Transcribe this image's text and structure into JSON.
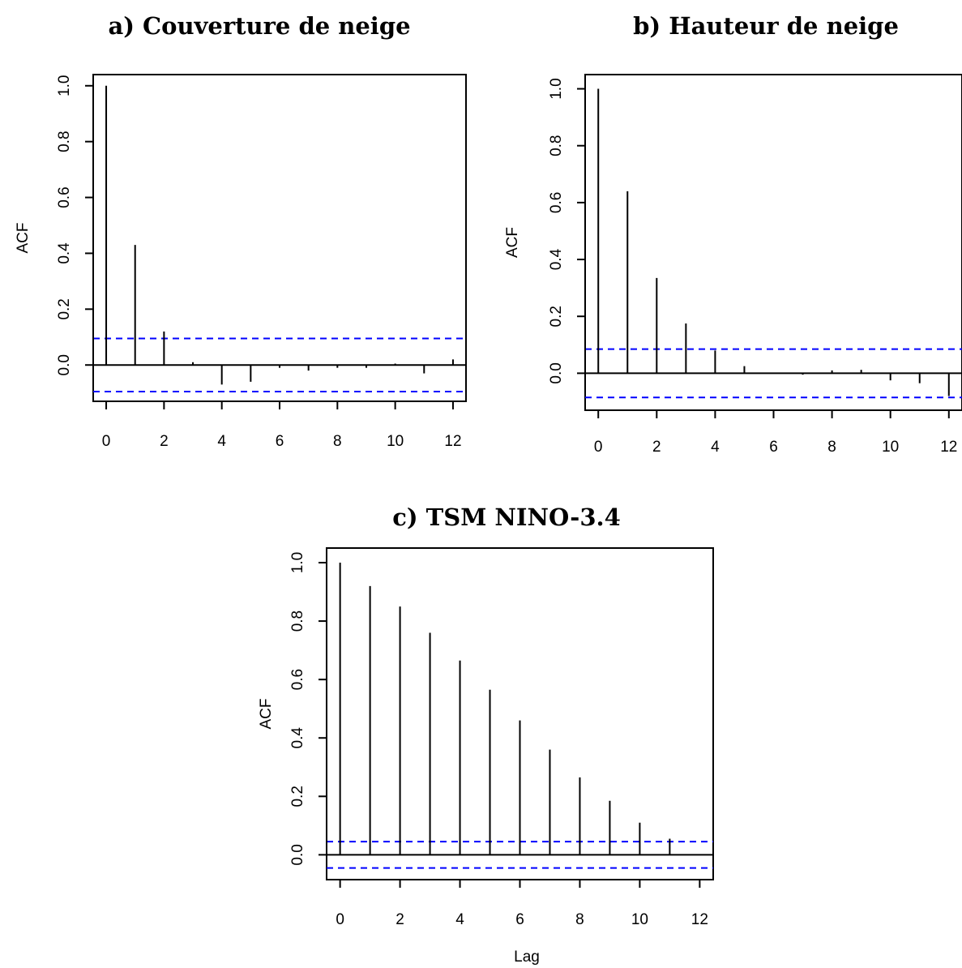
{
  "chart_data": [
    {
      "type": "bar",
      "subtype": "acf",
      "title": "a) Couverture de neige",
      "xlabel": "",
      "ylabel": "ACF",
      "xlim": [
        -0.45,
        12.45
      ],
      "ylim": [
        -0.13,
        1.04
      ],
      "xticks": [
        "0",
        "2",
        "4",
        "6",
        "8",
        "10",
        "12"
      ],
      "yticks": [
        "0.0",
        "0.2",
        "0.4",
        "0.6",
        "0.8",
        "1.0"
      ],
      "lags": [
        0,
        1,
        2,
        3,
        4,
        5,
        6,
        7,
        8,
        9,
        10,
        11,
        12
      ],
      "values": [
        1.0,
        0.43,
        0.12,
        0.01,
        -0.07,
        -0.06,
        -0.01,
        -0.02,
        -0.01,
        -0.01,
        0.005,
        -0.03,
        0.02
      ],
      "confidence_bound": 0.095,
      "colors": {
        "stems": "#000000",
        "bounds": "#0000ff"
      }
    },
    {
      "type": "bar",
      "subtype": "acf",
      "title": "b) Hauteur de neige",
      "xlabel": "",
      "ylabel": "ACF",
      "xlim": [
        -0.45,
        12.45
      ],
      "ylim": [
        -0.13,
        1.05
      ],
      "xticks": [
        "0",
        "2",
        "4",
        "6",
        "8",
        "10",
        "12"
      ],
      "yticks": [
        "0.0",
        "0.2",
        "0.4",
        "0.6",
        "0.8",
        "1.0"
      ],
      "lags": [
        0,
        1,
        2,
        3,
        4,
        5,
        6,
        7,
        8,
        9,
        10,
        11,
        12
      ],
      "values": [
        1.0,
        0.64,
        0.335,
        0.175,
        0.08,
        0.025,
        0.0,
        -0.005,
        0.01,
        0.012,
        -0.025,
        -0.035,
        -0.08
      ],
      "confidence_bound": 0.085,
      "colors": {
        "stems": "#000000",
        "bounds": "#0000ff"
      }
    },
    {
      "type": "bar",
      "subtype": "acf",
      "title": "c) TSM NINO-3.4",
      "xlabel": "Lag",
      "ylabel": "ACF",
      "xlim": [
        -0.45,
        12.45
      ],
      "ylim": [
        -0.085,
        1.05
      ],
      "xticks": [
        "0",
        "2",
        "4",
        "6",
        "8",
        "10",
        "12"
      ],
      "yticks": [
        "0.0",
        "0.2",
        "0.4",
        "0.6",
        "0.8",
        "1.0"
      ],
      "lags": [
        0,
        1,
        2,
        3,
        4,
        5,
        6,
        7,
        8,
        9,
        10,
        11,
        12
      ],
      "values": [
        1.0,
        0.92,
        0.85,
        0.76,
        0.665,
        0.565,
        0.46,
        0.36,
        0.265,
        0.185,
        0.11,
        0.055,
        0.0
      ],
      "confidence_bound": 0.045,
      "colors": {
        "stems": "#000000",
        "bounds": "#0000ff"
      }
    }
  ]
}
